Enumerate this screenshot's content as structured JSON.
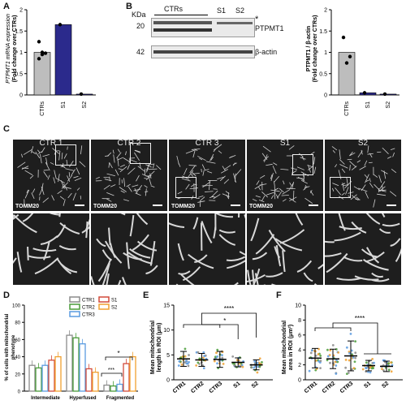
{
  "panels": {
    "A": "A",
    "B": "B",
    "C": "C",
    "D": "D",
    "E": "E",
    "F": "F"
  },
  "panelA": {
    "chart_data": {
      "type": "bar",
      "categories": [
        "CTRs",
        "S1",
        "S2"
      ],
      "values": [
        1.0,
        1.65,
        0.02
      ],
      "points": [
        [
          0.85,
          0.95,
          0.98,
          1.25,
          1.0
        ],
        [
          1.65
        ],
        [
          0.02
        ]
      ],
      "ylabel_1": "PTPMT1 mRNA expression",
      "ylabel_2": "(Fold change over CTRs)",
      "ylim": [
        0,
        2
      ],
      "yticks": [
        "0",
        "0.5",
        "1",
        "1.5",
        "2"
      ]
    }
  },
  "panelB": {
    "blot": {
      "group_label": "CTRs",
      "lanes": [
        "S1",
        "S2"
      ],
      "kda_label": "KDa",
      "mw_20": "20",
      "mw_42": "42",
      "star": "*",
      "band_1": "PTPMT1",
      "band_2": "β-actin"
    },
    "chart_data": {
      "type": "bar",
      "categories": [
        "CTRs",
        "S1",
        "S2"
      ],
      "values": [
        1.0,
        0.05,
        0.02
      ],
      "points": [
        [
          1.35,
          0.75,
          0.9
        ],
        [
          0.05
        ],
        [
          0.02
        ]
      ],
      "ylabel_1": "PTPMT1 / β-actin",
      "ylabel_2": "(Fold change over CTRs)",
      "ylim": [
        0,
        2
      ],
      "yticks": [
        "0",
        "0.5",
        "1",
        "1.5",
        "2"
      ]
    }
  },
  "panelC": {
    "images": [
      {
        "title": "CTR 1",
        "stain": "TOMM20"
      },
      {
        "title": "CTR 2",
        "stain": "TOMM20"
      },
      {
        "title": "CTR 3",
        "stain": "TOMM20"
      },
      {
        "title": "S1",
        "stain": "TOMM20"
      },
      {
        "title": "S2",
        "stain": ""
      }
    ]
  },
  "panelD": {
    "chart_data": {
      "type": "bar",
      "categories": [
        "Intermediate",
        "Hyperfused",
        "Fragmented"
      ],
      "series": [
        {
          "name": "CTR1",
          "color": "#8c8c8c",
          "values": [
            30,
            65,
            7
          ]
        },
        {
          "name": "CTR2",
          "color": "#4a9c3a",
          "values": [
            27,
            62,
            6
          ]
        },
        {
          "name": "CTR3",
          "color": "#5a9be0",
          "values": [
            30,
            55,
            8
          ]
        },
        {
          "name": "S1",
          "color": "#d24a3a",
          "values": [
            36,
            26,
            32
          ]
        },
        {
          "name": "S2",
          "color": "#f0a030",
          "values": [
            40,
            22,
            40
          ]
        }
      ],
      "ylabel_1": "% of cells with mitochondrial",
      "ylabel_2": "phenotype",
      "ylim": [
        0,
        100
      ],
      "yticks": [
        "0",
        "20",
        "40",
        "60",
        "80",
        "100"
      ],
      "sig_1": "*",
      "sig_2": "***"
    }
  },
  "panelE": {
    "chart_data": {
      "type": "scatter",
      "categories": [
        "CTR1",
        "CTR2",
        "CTR3",
        "S1",
        "S2"
      ],
      "means": [
        4.2,
        4.0,
        4.1,
        3.5,
        3.0
      ],
      "sd": [
        1.5,
        1.3,
        1.6,
        0.9,
        1.0
      ],
      "ylabel_1": "Mean mitochondrial",
      "ylabel_2": "length in ROI (μm)",
      "ylim": [
        0,
        15
      ],
      "yticks": [
        "0",
        "5",
        "10",
        "15"
      ],
      "sig_1": "****",
      "sig_2": "*"
    }
  },
  "panelF": {
    "chart_data": {
      "type": "scatter",
      "categories": [
        "CTR1",
        "CTR2",
        "CTR3",
        "S1",
        "S2"
      ],
      "means": [
        2.9,
        2.8,
        3.2,
        1.9,
        1.8
      ],
      "sd": [
        1.3,
        1.3,
        2.0,
        0.7,
        0.7
      ],
      "ylabel_1": "Mean mitochondrial",
      "ylabel_2": "area in ROI (μm²)",
      "ylim": [
        0,
        10
      ],
      "yticks": [
        "0",
        "2",
        "4",
        "6",
        "8",
        "10"
      ],
      "sig_1": "****"
    }
  }
}
